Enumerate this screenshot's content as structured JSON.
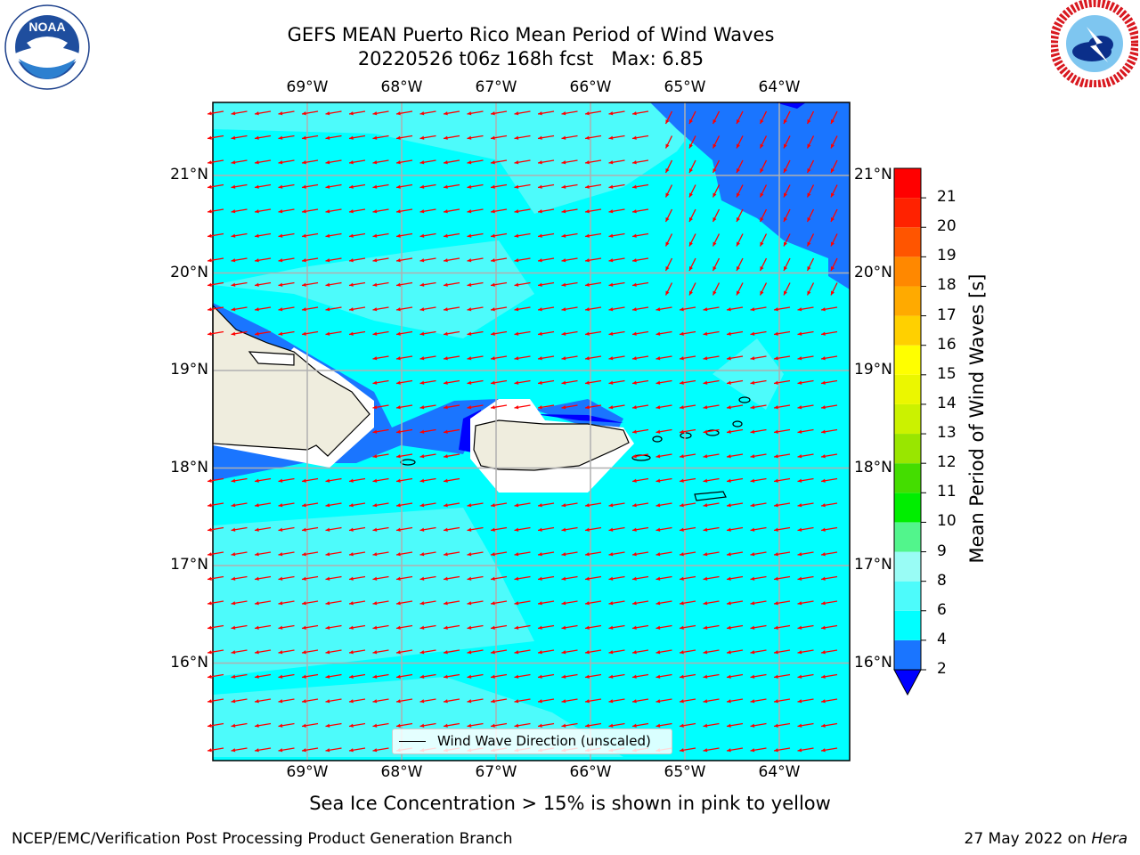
{
  "header": {
    "title_line1": "GEFS MEAN Puerto Rico Mean Period of Wind Waves",
    "title_line2": "20220526 t06z 168h fcst   Max: 6.85"
  },
  "logos": {
    "noaa": "NOAA",
    "noaa_ring": "NATIONAL OCEANIC AND ATMOSPHERIC ADMINISTRATION · U.S. DEPARTMENT OF COMMERCE",
    "nws_ring": "NATIONAL WEATHER SERVICE"
  },
  "map": {
    "lon_labels": [
      "69°W",
      "68°W",
      "67°W",
      "66°W",
      "65°W",
      "64°W"
    ],
    "lat_labels": [
      "21°N",
      "20°N",
      "19°N",
      "18°N",
      "17°N",
      "16°N"
    ],
    "legend": "Wind Wave Direction (unscaled)",
    "arrow_color": "#ff0000",
    "land_color": "#efedde"
  },
  "colorbar": {
    "title": "Mean Period of Wind Waves [s]",
    "ticks": [
      "2",
      "4",
      "6",
      "8",
      "9",
      "10",
      "11",
      "12",
      "13",
      "14",
      "15",
      "16",
      "17",
      "18",
      "19",
      "20",
      "21"
    ],
    "colors": [
      "#1a75ff",
      "#00ffff",
      "#4dfbfb",
      "#99fcf5",
      "#52f58c",
      "#00ee00",
      "#44dd00",
      "#99e600",
      "#cbf200",
      "#ebf700",
      "#ffff00",
      "#ffd000",
      "#ffaa00",
      "#ff8800",
      "#ff5500",
      "#ff2200",
      "#ff0000"
    ],
    "under_color": "#0000ff"
  },
  "footer": {
    "note": "Sea Ice Concentration > 15% is shown in pink to yellow",
    "credit": "NCEP/EMC/Verification Post Processing Product Generation Branch",
    "date": "27 May 2022 on",
    "machine": "Hera"
  }
}
